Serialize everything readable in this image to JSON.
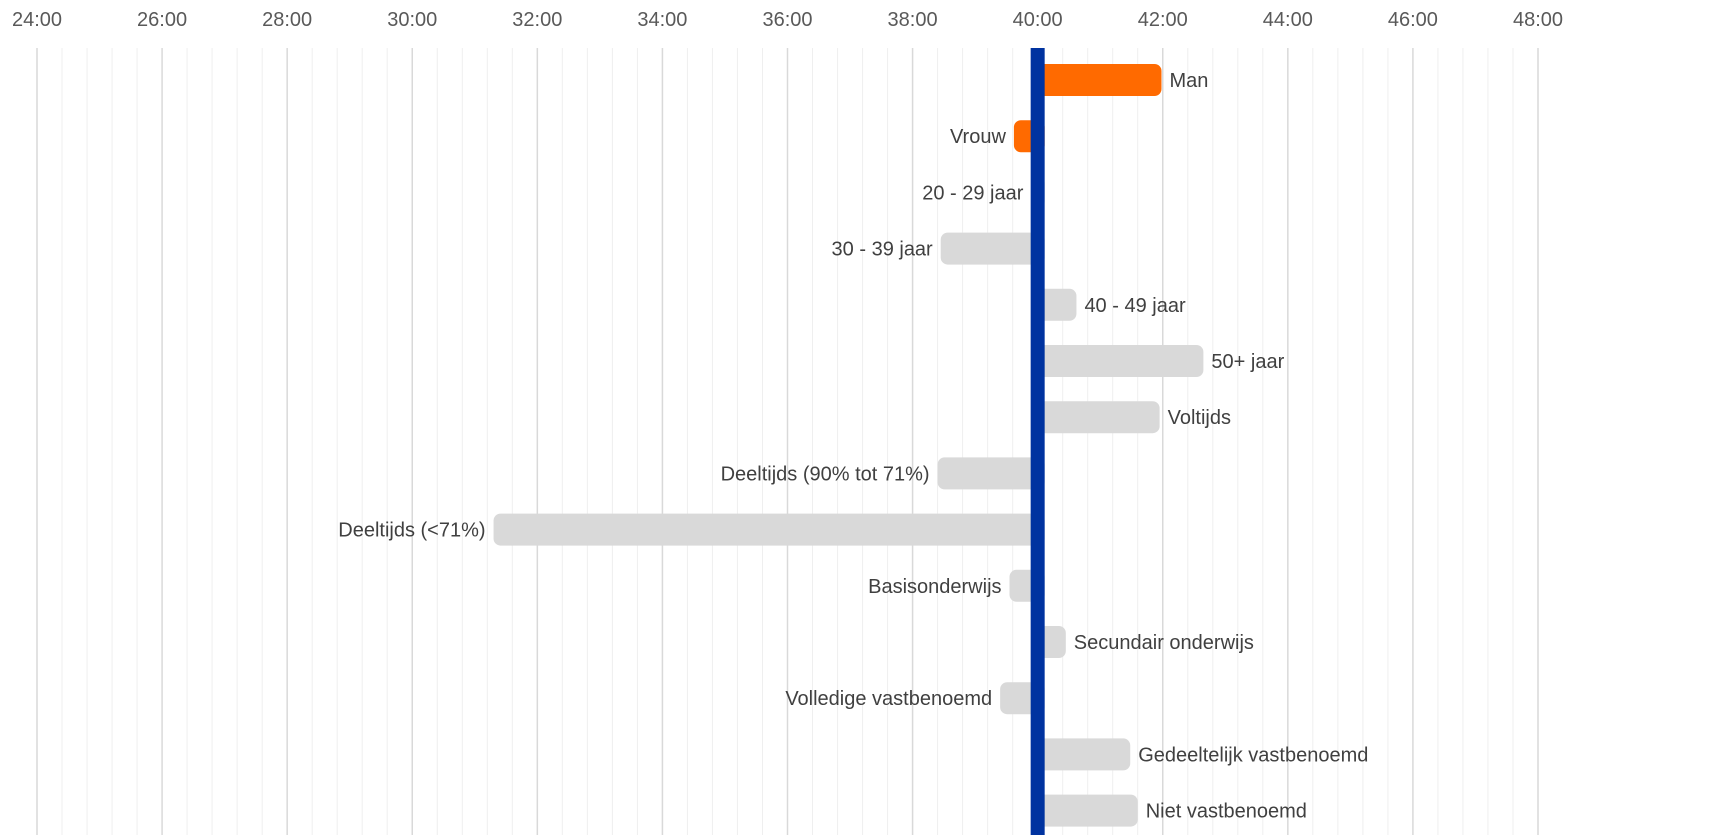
{
  "chart_data": {
    "type": "bar",
    "orientation": "horizontal",
    "baseline_label": "40:00",
    "x_ticks": [
      "24:00",
      "26:00",
      "28:00",
      "30:00",
      "32:00",
      "34:00",
      "36:00",
      "38:00",
      "40:00",
      "42:00",
      "44:00",
      "46:00",
      "48:00"
    ],
    "xlim": [
      24,
      48
    ],
    "baseline": 40,
    "grid": true,
    "minor_grid": true,
    "legend": "none",
    "colors": {
      "highlight": "#FF6A00",
      "default": "#D9D9D9",
      "baseline": "#0033A0",
      "major_grid": "#D9D9D9",
      "minor_grid": "#EFEFEF",
      "tick_text": "#595959",
      "label_text": "#404040"
    },
    "bars": [
      {
        "label": "Man",
        "value": 41.98,
        "highlight": true
      },
      {
        "label": "Vrouw",
        "value": 39.62,
        "highlight": true
      },
      {
        "label": "20 - 29 jaar",
        "value": 39.9,
        "highlight": false
      },
      {
        "label": "30 - 39 jaar",
        "value": 38.45,
        "highlight": false
      },
      {
        "label": "40 - 49 jaar",
        "value": 40.62,
        "highlight": false
      },
      {
        "label": "50+ jaar",
        "value": 42.65,
        "highlight": false
      },
      {
        "label": "Voltijds",
        "value": 41.95,
        "highlight": false
      },
      {
        "label": "Deeltijds (90% tot 71%)",
        "value": 38.4,
        "highlight": false
      },
      {
        "label": "Deeltijds (<71%)",
        "value": 31.3,
        "highlight": false
      },
      {
        "label": "Basisonderwijs",
        "value": 39.55,
        "highlight": false
      },
      {
        "label": "Secundair onderwijs",
        "value": 40.45,
        "highlight": false
      },
      {
        "label": "Volledige vastbenoemd",
        "value": 39.4,
        "highlight": false
      },
      {
        "label": "Gedeeltelijk vastbenoemd",
        "value": 41.48,
        "highlight": false
      },
      {
        "label": "Niet vastbenoemd",
        "value": 41.6,
        "highlight": false
      }
    ]
  }
}
